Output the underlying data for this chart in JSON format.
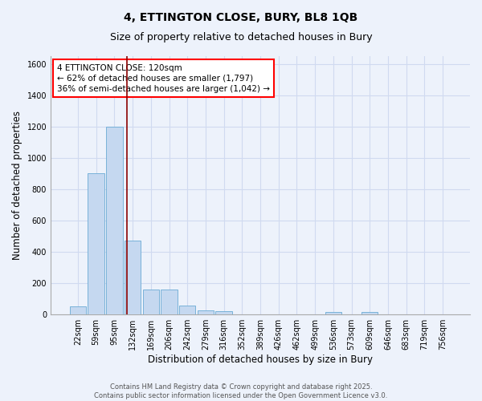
{
  "title1": "4, ETTINGTON CLOSE, BURY, BL8 1QB",
  "title2": "Size of property relative to detached houses in Bury",
  "xlabel": "Distribution of detached houses by size in Bury",
  "ylabel": "Number of detached properties",
  "categories": [
    "22sqm",
    "59sqm",
    "95sqm",
    "132sqm",
    "169sqm",
    "206sqm",
    "242sqm",
    "279sqm",
    "316sqm",
    "352sqm",
    "389sqm",
    "426sqm",
    "462sqm",
    "499sqm",
    "536sqm",
    "573sqm",
    "609sqm",
    "646sqm",
    "683sqm",
    "719sqm",
    "756sqm"
  ],
  "values": [
    50,
    900,
    1200,
    470,
    160,
    160,
    55,
    28,
    20,
    0,
    0,
    0,
    0,
    0,
    15,
    0,
    15,
    0,
    0,
    0,
    0
  ],
  "bar_color": "#c5d8f0",
  "bar_edge_color": "#6aaad4",
  "background_color": "#edf2fb",
  "grid_color": "#d0daf0",
  "vline_x": 2.7,
  "vline_color": "#8b0000",
  "ylim": [
    0,
    1650
  ],
  "yticks": [
    0,
    200,
    400,
    600,
    800,
    1000,
    1200,
    1400,
    1600
  ],
  "annotation_text": "4 ETTINGTON CLOSE: 120sqm\n← 62% of detached houses are smaller (1,797)\n36% of semi-detached houses are larger (1,042) →",
  "footer1": "Contains HM Land Registry data © Crown copyright and database right 2025.",
  "footer2": "Contains public sector information licensed under the Open Government Licence v3.0.",
  "title_fontsize": 10,
  "subtitle_fontsize": 9,
  "tick_fontsize": 7,
  "ylabel_fontsize": 8.5,
  "xlabel_fontsize": 8.5,
  "ann_fontsize": 7.5,
  "footer_fontsize": 6
}
